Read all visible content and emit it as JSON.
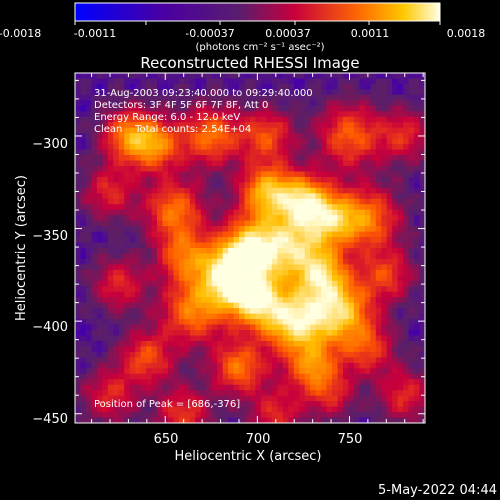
{
  "colorbar": {
    "tick_labels": [
      "-0.0018",
      "-0.0011",
      "-0.00037",
      "0.00037",
      "0.0011",
      "0.0018"
    ],
    "ticks": [
      -0.0018,
      -0.0011,
      -0.00037,
      0.00037,
      0.0011,
      0.0018
    ],
    "range": [
      -0.0018,
      0.0018
    ],
    "units_label": "(photons cm⁻² s⁻¹ asec⁻²)"
  },
  "chart_data": {
    "type": "heatmap",
    "title": "Reconstructed RHESSI Image",
    "xlabel": "Heliocentric X (arcsec)",
    "ylabel": "Heliocentric Y (arcsec)",
    "xlim": [
      601,
      791
    ],
    "ylim": [
      -455,
      -266
    ],
    "x_ticks": [
      650,
      700,
      750
    ],
    "x_tick_labels": [
      "650",
      "700",
      "750"
    ],
    "y_ticks": [
      -450,
      -400,
      -350,
      -300
    ],
    "y_tick_labels": [
      "−450",
      "−400",
      "−350",
      "−300"
    ],
    "annotations": [
      "31-Aug-2003 09:23:40.000 to 09:29:40.000",
      "Detectors: 3F 4F 5F 6F 7F 8F, Att 0",
      "Energy Range: 6.0 - 12.0 keV",
      "Clean    Total counts: 2.54E+04"
    ],
    "peak_label": "Position of Peak = [686,-376]",
    "peak": [
      686,
      -376
    ],
    "blobs": [
      {
        "x": 686,
        "y": -376,
        "amp": 1.0,
        "r": 12
      },
      {
        "x": 698,
        "y": -360,
        "amp": 0.75,
        "r": 12
      },
      {
        "x": 705,
        "y": -330,
        "amp": 0.7,
        "r": 10
      },
      {
        "x": 725,
        "y": -335,
        "amp": 0.75,
        "r": 10
      },
      {
        "x": 740,
        "y": -345,
        "amp": 0.6,
        "r": 10
      },
      {
        "x": 760,
        "y": -345,
        "amp": 0.55,
        "r": 12
      },
      {
        "x": 720,
        "y": -360,
        "amp": 0.65,
        "r": 12
      },
      {
        "x": 735,
        "y": -375,
        "amp": 0.65,
        "r": 10
      },
      {
        "x": 745,
        "y": -395,
        "amp": 0.75,
        "r": 12
      },
      {
        "x": 720,
        "y": -400,
        "amp": 0.85,
        "r": 12
      },
      {
        "x": 700,
        "y": -390,
        "amp": 0.65,
        "r": 10
      },
      {
        "x": 665,
        "y": -395,
        "amp": 0.55,
        "r": 12
      },
      {
        "x": 660,
        "y": -365,
        "amp": 0.5,
        "r": 10
      },
      {
        "x": 655,
        "y": -340,
        "amp": 0.55,
        "r": 11
      },
      {
        "x": 645,
        "y": -305,
        "amp": 0.55,
        "r": 10
      },
      {
        "x": 630,
        "y": -300,
        "amp": 0.55,
        "r": 10
      },
      {
        "x": 675,
        "y": -300,
        "amp": 0.55,
        "r": 11
      },
      {
        "x": 705,
        "y": -300,
        "amp": 0.45,
        "r": 10
      },
      {
        "x": 750,
        "y": -300,
        "amp": 0.5,
        "r": 12
      },
      {
        "x": 780,
        "y": -300,
        "amp": 0.35,
        "r": 10
      },
      {
        "x": 620,
        "y": -330,
        "amp": 0.35,
        "r": 10
      },
      {
        "x": 625,
        "y": -380,
        "amp": 0.35,
        "r": 10
      },
      {
        "x": 640,
        "y": -420,
        "amp": 0.45,
        "r": 10
      },
      {
        "x": 620,
        "y": -440,
        "amp": 0.35,
        "r": 10
      },
      {
        "x": 690,
        "y": -425,
        "amp": 0.55,
        "r": 10
      },
      {
        "x": 730,
        "y": -425,
        "amp": 0.55,
        "r": 10
      },
      {
        "x": 760,
        "y": -415,
        "amp": 0.4,
        "r": 10
      },
      {
        "x": 770,
        "y": -375,
        "amp": 0.4,
        "r": 10
      },
      {
        "x": 660,
        "y": -450,
        "amp": 0.4,
        "r": 10
      },
      {
        "x": 710,
        "y": -450,
        "amp": 0.35,
        "r": 10
      },
      {
        "x": 780,
        "y": -440,
        "amp": 0.35,
        "r": 10
      },
      {
        "x": 740,
        "y": -440,
        "amp": 0.3,
        "r": 9
      }
    ]
  },
  "footer": {
    "date": "5-May-2022 04:44"
  }
}
